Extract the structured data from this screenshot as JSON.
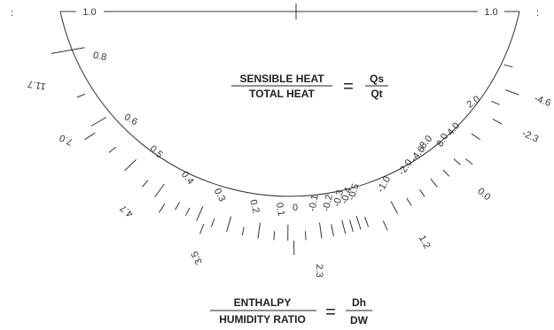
{
  "diagram": {
    "corner_marks": [
      ":",
      ":"
    ],
    "top_labels": [
      "1.0",
      "1.0"
    ],
    "sensible_heat_ratio": {
      "numerator_label": "SENSIBLE HEAT",
      "denominator_label": "TOTAL HEAT",
      "equals": "=",
      "numerator_symbol": "Qs",
      "denominator_symbol": "Qt"
    },
    "enthalpy_ratio": {
      "numerator_label": "ENTHALPY",
      "denominator_label": "HUMIDITY RATIO",
      "equals": "=",
      "numerator_symbol": "Dh",
      "denominator_symbol": "DW"
    },
    "inner_scale": [
      "0.8",
      "0.6",
      "0.5",
      "0.4",
      "0.3",
      "0.2",
      "0.1",
      "0",
      "-0.1",
      "-0.2",
      "-0.3",
      "-0.4",
      "-0.5",
      "-1.0",
      "-2.0",
      "-4.0",
      "-8.0",
      "8.0",
      "4.0",
      "2.0"
    ],
    "outer_scale": [
      "11.7",
      "7.0",
      "4.7",
      "3.5",
      "2.3",
      "1.2",
      "0.0",
      "-2.3",
      "-4.6"
    ]
  }
}
